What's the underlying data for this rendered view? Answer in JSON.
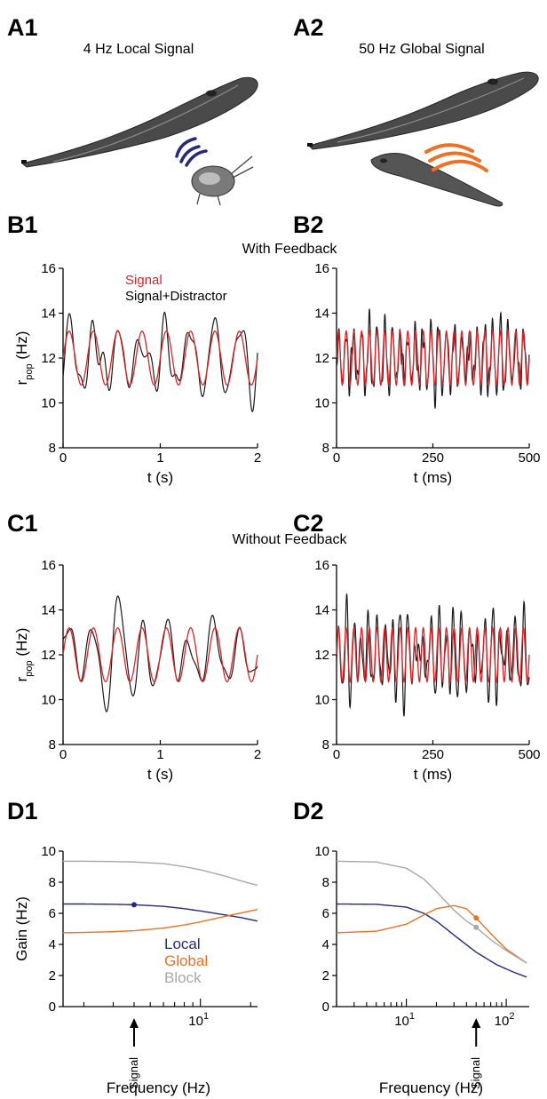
{
  "panel_labels": {
    "A1": "A1",
    "A2": "A2",
    "B1": "B1",
    "B2": "B2",
    "C1": "C1",
    "C2": "C2",
    "D1": "D1",
    "D2": "D2"
  },
  "panel_titles": {
    "A1": "4 Hz Local Signal",
    "A2": "50 Hz Global Signal"
  },
  "row_titles": {
    "B": "With Feedback",
    "C": "Without Feedback"
  },
  "legend_B1": {
    "signal": "Signal",
    "signal_distractor": "Signal+Distractor"
  },
  "colors": {
    "signal": "#d7262b",
    "distractor": "#1a1a1a",
    "local": "#262a7c",
    "global": "#ee7024",
    "block": "#a8a8a8",
    "wave_local": "#262a7c",
    "wave_global": "#ee7024"
  },
  "axis": {
    "ylabel_base": "r",
    "ylabel_sub": "pop",
    "ylabel_unit": " (Hz)",
    "xlabel_s": "t (s)",
    "xlabel_ms": "t (ms)",
    "gain_label": "Gain (Hz)",
    "freq_label": "Frequency (Hz)",
    "signal_marker": "Signal"
  },
  "legend_D1": [
    "Local",
    "Global",
    "Block"
  ],
  "chart_data": [
    {
      "id": "B1",
      "type": "line",
      "xlabel": "t (s)",
      "ylabel": "r_pop (Hz)",
      "xlim": [
        0,
        2
      ],
      "ylim": [
        8,
        16
      ],
      "xticks": [
        0,
        1,
        2
      ],
      "yticks": [
        8,
        10,
        12,
        14,
        16
      ],
      "series": [
        {
          "name": "Signal",
          "kind": "sine",
          "mean": 12,
          "amplitude": 1.2,
          "frequency": 4,
          "color": "#d7262b"
        },
        {
          "name": "Signal+Distractor",
          "kind": "noisy",
          "mean": 12,
          "amplitude": 1.2,
          "frequency": 4,
          "noise": 1.1,
          "seed": 3,
          "color": "#1a1a1a"
        }
      ]
    },
    {
      "id": "B2",
      "type": "line",
      "xlabel": "t (ms)",
      "ylabel": "r_pop (Hz)",
      "xlim": [
        0,
        500
      ],
      "ylim": [
        8,
        16
      ],
      "xticks": [
        0,
        250,
        500
      ],
      "yticks": [
        8,
        10,
        12,
        14,
        16
      ],
      "series": [
        {
          "name": "Signal",
          "kind": "sine",
          "mean": 12,
          "amplitude": 1.2,
          "frequency": 0.05,
          "color": "#d7262b"
        },
        {
          "name": "Signal+Distractor",
          "kind": "noisy",
          "mean": 12,
          "amplitude": 1.2,
          "frequency": 0.05,
          "noise": 0.8,
          "seed": 7,
          "color": "#1a1a1a"
        }
      ]
    },
    {
      "id": "C1",
      "type": "line",
      "xlabel": "t (s)",
      "ylabel": "r_pop (Hz)",
      "xlim": [
        0,
        2
      ],
      "ylim": [
        8,
        16
      ],
      "xticks": [
        0,
        1,
        2
      ],
      "yticks": [
        8,
        10,
        12,
        14,
        16
      ],
      "series": [
        {
          "name": "Signal",
          "kind": "sine",
          "mean": 12,
          "amplitude": 1.2,
          "frequency": 4,
          "color": "#d7262b"
        },
        {
          "name": "Signal+Distractor",
          "kind": "noisy",
          "mean": 12,
          "amplitude": 1.2,
          "frequency": 4,
          "noise": 1.6,
          "seed": 11,
          "color": "#1a1a1a"
        }
      ]
    },
    {
      "id": "C2",
      "type": "line",
      "xlabel": "t (ms)",
      "ylabel": "r_pop (Hz)",
      "xlim": [
        0,
        500
      ],
      "ylim": [
        8,
        16
      ],
      "xticks": [
        0,
        250,
        500
      ],
      "yticks": [
        8,
        10,
        12,
        14,
        16
      ],
      "series": [
        {
          "name": "Signal",
          "kind": "sine",
          "mean": 12,
          "amplitude": 1.2,
          "frequency": 0.05,
          "color": "#d7262b"
        },
        {
          "name": "Signal+Distractor",
          "kind": "noisy",
          "mean": 12,
          "amplitude": 1.2,
          "frequency": 0.05,
          "noise": 1.3,
          "seed": 19,
          "color": "#1a1a1a"
        }
      ]
    },
    {
      "id": "D1",
      "type": "line",
      "xscale": "log",
      "xlabel": "Frequency (Hz)",
      "ylabel": "Gain (Hz)",
      "xlim": [
        1.5,
        22
      ],
      "ylim": [
        0,
        10
      ],
      "yticks": [
        0,
        2,
        4,
        6,
        8,
        10
      ],
      "xtick_label": "10^1 at 10",
      "signal_frequency": 4,
      "series": [
        {
          "name": "Local",
          "color": "#262a7c",
          "points": [
            [
              1.5,
              6.6
            ],
            [
              2,
              6.6
            ],
            [
              3,
              6.58
            ],
            [
              4,
              6.55
            ],
            [
              6,
              6.45
            ],
            [
              8,
              6.3
            ],
            [
              10,
              6.15
            ],
            [
              14,
              5.9
            ],
            [
              18,
              5.7
            ],
            [
              22,
              5.5
            ]
          ],
          "marker": [
            4,
            6.55
          ]
        },
        {
          "name": "Global",
          "color": "#ee7024",
          "points": [
            [
              1.5,
              4.75
            ],
            [
              2,
              4.77
            ],
            [
              3,
              4.82
            ],
            [
              4,
              4.88
            ],
            [
              6,
              5.05
            ],
            [
              8,
              5.25
            ],
            [
              10,
              5.45
            ],
            [
              14,
              5.8
            ],
            [
              18,
              6.05
            ],
            [
              22,
              6.25
            ]
          ]
        },
        {
          "name": "Block",
          "color": "#a8a8a8",
          "points": [
            [
              1.5,
              9.35
            ],
            [
              2,
              9.35
            ],
            [
              3,
              9.33
            ],
            [
              4,
              9.3
            ],
            [
              6,
              9.2
            ],
            [
              8,
              9.0
            ],
            [
              10,
              8.8
            ],
            [
              14,
              8.4
            ],
            [
              18,
              8.05
            ],
            [
              22,
              7.8
            ]
          ]
        }
      ]
    },
    {
      "id": "D2",
      "type": "line",
      "xscale": "log",
      "xlim": [
        2,
        170
      ],
      "ylim": [
        0,
        10
      ],
      "yticks": [
        0,
        2,
        4,
        6,
        8,
        10
      ],
      "xtick_labels": [
        "10^1",
        "10^2"
      ],
      "signal_frequency": 50,
      "series": [
        {
          "name": "Local",
          "color": "#262a7c",
          "points": [
            [
              2,
              6.6
            ],
            [
              5,
              6.58
            ],
            [
              10,
              6.4
            ],
            [
              15,
              6.0
            ],
            [
              20,
              5.5
            ],
            [
              30,
              4.6
            ],
            [
              50,
              3.5
            ],
            [
              80,
              2.7
            ],
            [
              120,
              2.2
            ],
            [
              160,
              1.9
            ]
          ]
        },
        {
          "name": "Global",
          "color": "#ee7024",
          "points": [
            [
              2,
              4.75
            ],
            [
              5,
              4.85
            ],
            [
              10,
              5.3
            ],
            [
              15,
              5.9
            ],
            [
              20,
              6.3
            ],
            [
              30,
              6.5
            ],
            [
              40,
              6.3
            ],
            [
              50,
              5.7
            ],
            [
              70,
              4.7
            ],
            [
              100,
              3.7
            ],
            [
              160,
              2.8
            ]
          ],
          "marker": [
            50,
            5.7
          ]
        },
        {
          "name": "Block",
          "color": "#a8a8a8",
          "points": [
            [
              2,
              9.35
            ],
            [
              5,
              9.3
            ],
            [
              10,
              8.9
            ],
            [
              15,
              8.2
            ],
            [
              20,
              7.4
            ],
            [
              30,
              6.2
            ],
            [
              40,
              5.5
            ],
            [
              50,
              5.1
            ],
            [
              70,
              4.3
            ],
            [
              100,
              3.6
            ],
            [
              160,
              2.8
            ]
          ],
          "marker": [
            50,
            5.1
          ]
        }
      ]
    }
  ]
}
